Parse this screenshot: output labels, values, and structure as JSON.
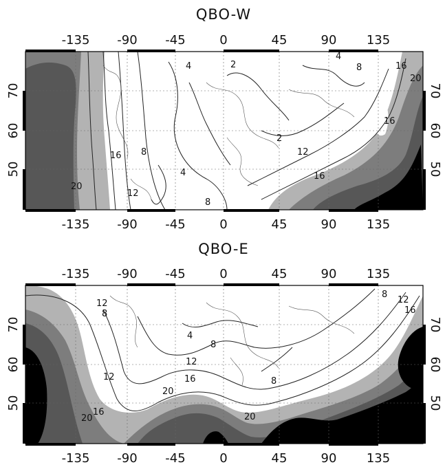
{
  "panels": [
    {
      "title": "QBO-W",
      "x_ticks": [
        "-135",
        "-90",
        "-45",
        "0",
        "45",
        "90",
        "135"
      ],
      "y_ticks": [
        "70",
        "60",
        "50"
      ],
      "contour_labels": [
        "4",
        "2",
        "8",
        "16",
        "12",
        "20",
        "4",
        "2",
        "8",
        "16",
        "12",
        "16",
        "20",
        "16",
        "8",
        "4"
      ]
    },
    {
      "title": "QBO-E",
      "x_ticks": [
        "-135",
        "-90",
        "-45",
        "0",
        "45",
        "90",
        "135"
      ],
      "y_ticks": [
        "70",
        "60",
        "50"
      ],
      "contour_labels": [
        "12",
        "8",
        "4",
        "8",
        "12",
        "16",
        "20",
        "12",
        "20",
        "16",
        "8",
        "20",
        "16",
        "12",
        "8"
      ]
    }
  ],
  "colors": {
    "background": "#ffffff",
    "level1": "#b3b3b3",
    "level2": "#7d7d7d",
    "level3": "#575757",
    "level4": "#000000",
    "contour": "#222222"
  }
}
